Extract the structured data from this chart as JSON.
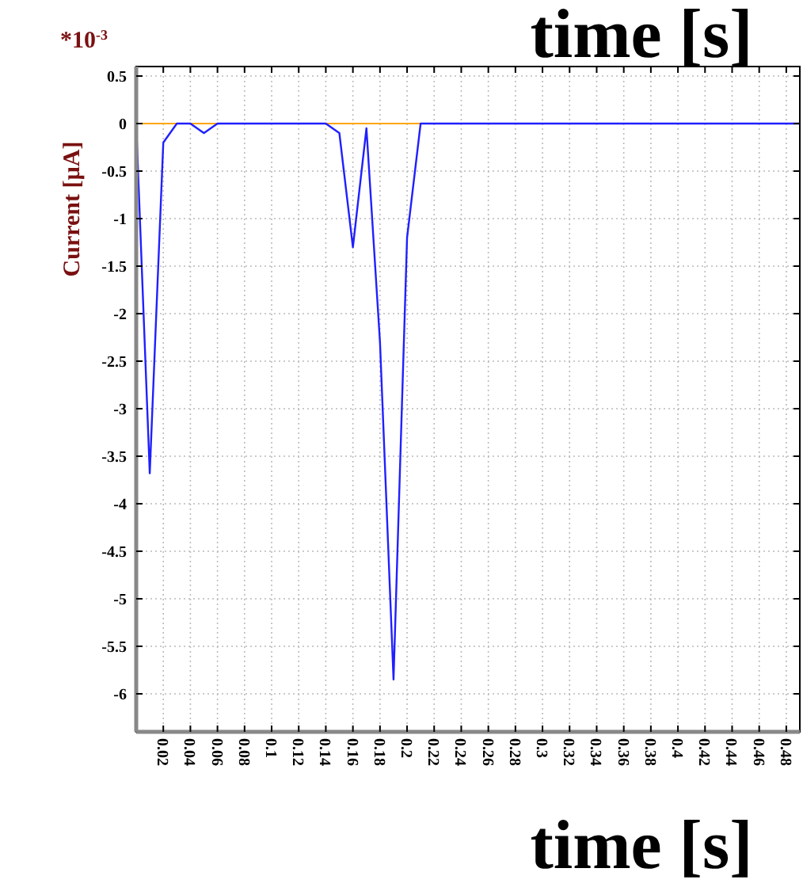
{
  "chart_data": {
    "type": "line",
    "xlabel": "time [s]",
    "ylabel": "Current [µA]",
    "annotations": [
      "time [s]",
      "*10$^{-3}$"
    ],
    "x": [
      0,
      0.01,
      0.02,
      0.03,
      0.04,
      0.05,
      0.06,
      0.14,
      0.15,
      0.16,
      0.17,
      0.18,
      0.19,
      0.2,
      0.21,
      0.49
    ],
    "series": [
      {
        "color": "#2020ff",
        "values": [
          0,
          -3.68,
          -0.2,
          0,
          0,
          -0.1,
          0,
          0,
          -0.1,
          -1.3,
          -0.05,
          -2.3,
          -5.85,
          -1.2,
          0,
          0
        ]
      }
    ],
    "xlim": [
      0,
      0.49
    ],
    "ylim": [
      -6.4,
      0.6
    ],
    "xticks": [
      0.02,
      0.04,
      0.06,
      0.08,
      0.1,
      0.12,
      0.14,
      0.16,
      0.18,
      0.2,
      0.22,
      0.24,
      0.26,
      0.28,
      0.3,
      0.32,
      0.34,
      0.36,
      0.38,
      0.4,
      0.42,
      0.44,
      0.46,
      0.48
    ],
    "yticks": [
      0.5,
      0,
      -0.5,
      -1,
      -1.5,
      -2,
      -2.5,
      -3,
      -3.5,
      -4,
      -4.5,
      -5,
      -5.5,
      -6
    ],
    "ref_lines": [
      {
        "axis": "y",
        "value": 0,
        "color": "#ffa500"
      }
    ],
    "grid": true,
    "marker": "none",
    "line_style": "solid"
  }
}
